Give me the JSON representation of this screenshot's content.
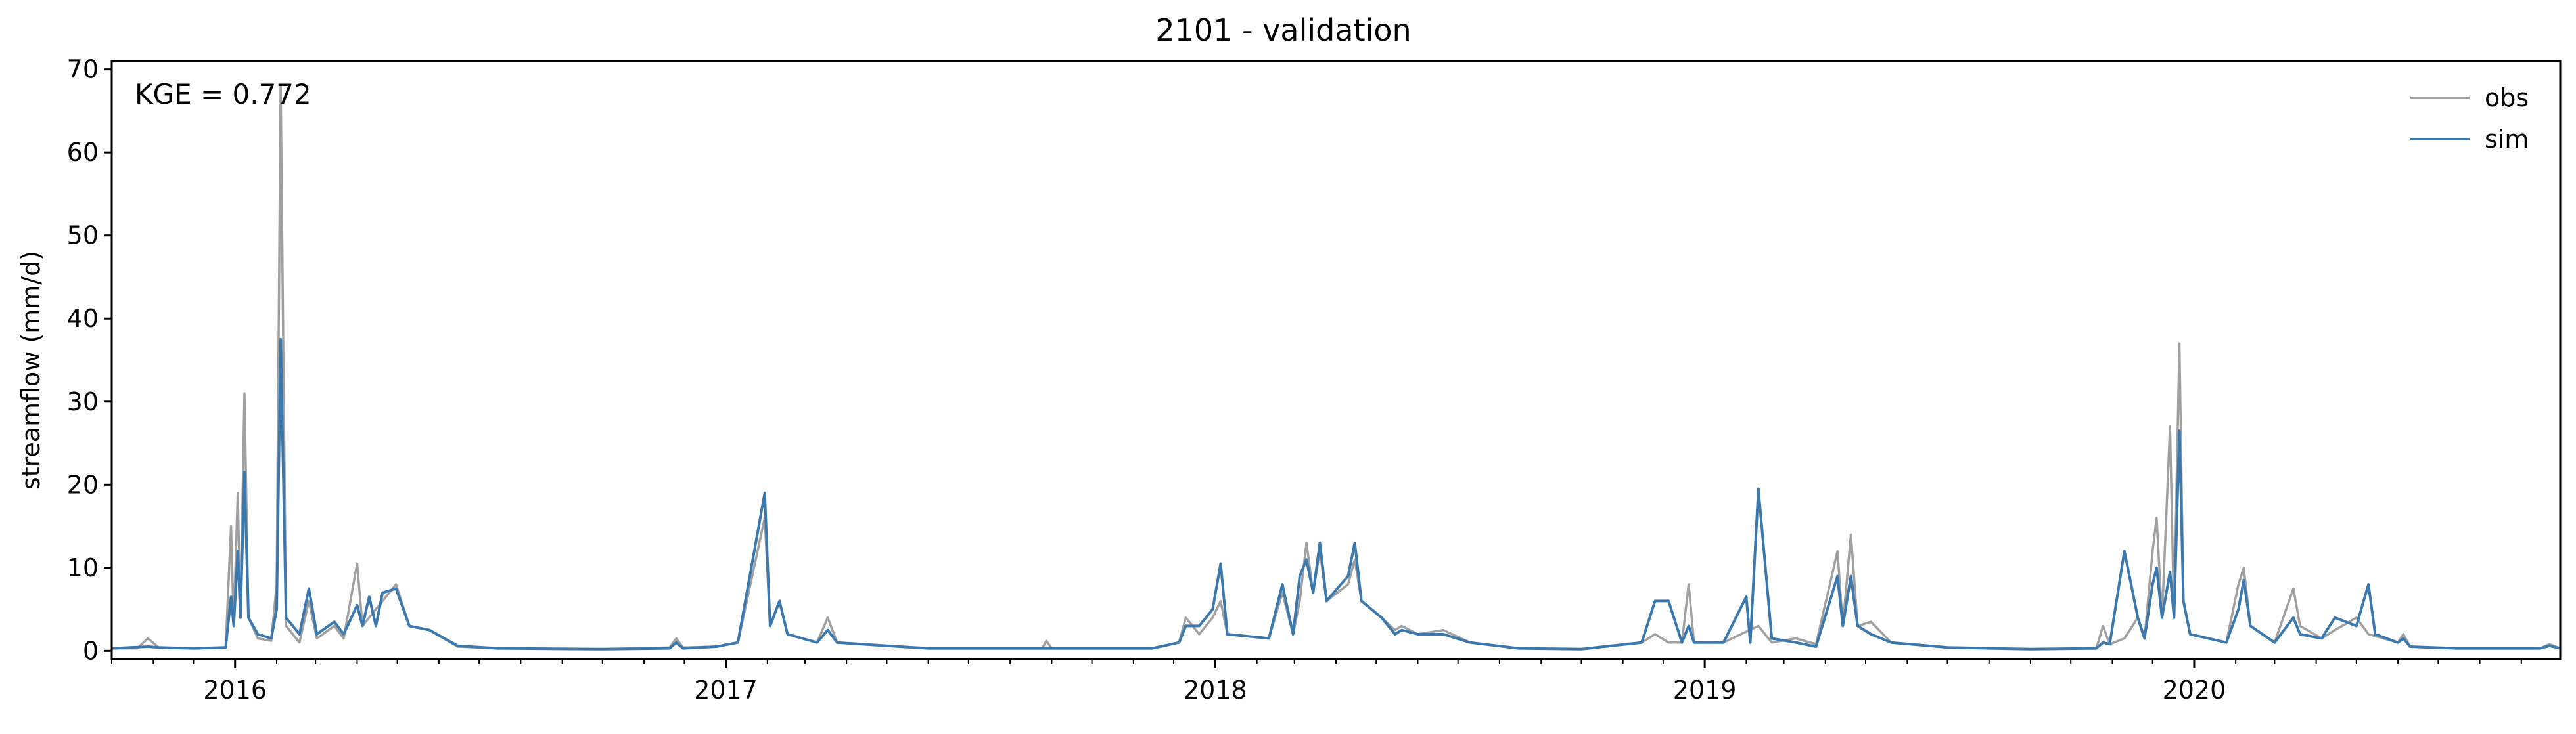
{
  "chart_data": {
    "type": "line",
    "title": "2101 - validation",
    "xlabel": "",
    "ylabel": "streamflow (mm/d)",
    "xlim": [
      "2015-10-01",
      "2020-09-30"
    ],
    "ylim": [
      -1,
      71
    ],
    "xticks": [
      "2016-01-01",
      "2017-01-01",
      "2018-01-01",
      "2019-01-01",
      "2020-01-01"
    ],
    "xtick_labels": [
      "2016",
      "2017",
      "2018",
      "2019",
      "2020"
    ],
    "yticks": [
      0,
      10,
      20,
      30,
      40,
      50,
      60,
      70
    ],
    "ytick_labels": [
      "0",
      "10",
      "20",
      "30",
      "40",
      "50",
      "60",
      "70"
    ],
    "annotation": "KGE = 0.772",
    "grid": false,
    "legend_position": "top-right",
    "series": [
      {
        "name": "obs",
        "color": "#a0a0a0",
        "points": [
          [
            "2015-10-01",
            0.3
          ],
          [
            "2015-10-20",
            0.3
          ],
          [
            "2015-10-28",
            1.5
          ],
          [
            "2015-11-05",
            0.4
          ],
          [
            "2015-12-01",
            0.3
          ],
          [
            "2015-12-25",
            0.4
          ],
          [
            "2015-12-29",
            15.0
          ],
          [
            "2015-12-31",
            3.0
          ],
          [
            "2016-01-03",
            19.0
          ],
          [
            "2016-01-05",
            4.0
          ],
          [
            "2016-01-08",
            31.0
          ],
          [
            "2016-01-11",
            4.0
          ],
          [
            "2016-01-18",
            1.5
          ],
          [
            "2016-01-28",
            1.2
          ],
          [
            "2016-02-01",
            8.0
          ],
          [
            "2016-02-04",
            68.0
          ],
          [
            "2016-02-08",
            3.0
          ],
          [
            "2016-02-18",
            1.0
          ],
          [
            "2016-02-25",
            6.0
          ],
          [
            "2016-03-02",
            1.5
          ],
          [
            "2016-03-15",
            3.0
          ],
          [
            "2016-03-22",
            1.5
          ],
          [
            "2016-04-01",
            10.5
          ],
          [
            "2016-04-05",
            3.0
          ],
          [
            "2016-04-20",
            6.0
          ],
          [
            "2016-04-30",
            8.0
          ],
          [
            "2016-05-10",
            3.0
          ],
          [
            "2016-05-25",
            2.5
          ],
          [
            "2016-06-15",
            0.5
          ],
          [
            "2016-07-15",
            0.3
          ],
          [
            "2016-10-01",
            0.2
          ],
          [
            "2016-11-20",
            0.4
          ],
          [
            "2016-11-25",
            1.5
          ],
          [
            "2016-11-30",
            0.4
          ],
          [
            "2016-12-25",
            0.5
          ],
          [
            "2017-01-10",
            1.0
          ],
          [
            "2017-01-30",
            16.0
          ],
          [
            "2017-02-03",
            3.0
          ],
          [
            "2017-02-10",
            6.0
          ],
          [
            "2017-02-16",
            2.0
          ],
          [
            "2017-03-10",
            1.0
          ],
          [
            "2017-03-18",
            4.0
          ],
          [
            "2017-03-25",
            1.0
          ],
          [
            "2017-05-01",
            0.6
          ],
          [
            "2017-06-01",
            0.3
          ],
          [
            "2017-08-25",
            0.3
          ],
          [
            "2017-08-28",
            1.2
          ],
          [
            "2017-09-01",
            0.3
          ],
          [
            "2017-11-15",
            0.3
          ],
          [
            "2017-12-05",
            1.0
          ],
          [
            "2017-12-10",
            4.0
          ],
          [
            "2017-12-20",
            2.0
          ],
          [
            "2017-12-30",
            4.0
          ],
          [
            "2018-01-05",
            6.0
          ],
          [
            "2018-01-10",
            2.0
          ],
          [
            "2018-02-10",
            1.5
          ],
          [
            "2018-02-20",
            7.0
          ],
          [
            "2018-02-28",
            2.0
          ],
          [
            "2018-03-05",
            6.0
          ],
          [
            "2018-03-10",
            13.0
          ],
          [
            "2018-03-15",
            7.0
          ],
          [
            "2018-03-20",
            12.0
          ],
          [
            "2018-03-25",
            6.0
          ],
          [
            "2018-04-10",
            8.0
          ],
          [
            "2018-04-15",
            11.0
          ],
          [
            "2018-04-20",
            6.0
          ],
          [
            "2018-05-05",
            4.0
          ],
          [
            "2018-05-15",
            2.5
          ],
          [
            "2018-05-20",
            3.0
          ],
          [
            "2018-06-01",
            2.0
          ],
          [
            "2018-06-20",
            2.5
          ],
          [
            "2018-07-10",
            1.0
          ],
          [
            "2018-08-15",
            0.3
          ],
          [
            "2018-10-01",
            0.2
          ],
          [
            "2018-11-15",
            1.0
          ],
          [
            "2018-11-25",
            2.0
          ],
          [
            "2018-12-05",
            1.0
          ],
          [
            "2018-12-15",
            1.0
          ],
          [
            "2018-12-20",
            8.0
          ],
          [
            "2018-12-24",
            1.0
          ],
          [
            "2019-01-15",
            1.0
          ],
          [
            "2019-02-10",
            3.0
          ],
          [
            "2019-02-20",
            1.0
          ],
          [
            "2019-03-10",
            1.5
          ],
          [
            "2019-03-25",
            0.8
          ],
          [
            "2019-04-10",
            12.0
          ],
          [
            "2019-04-14",
            3.0
          ],
          [
            "2019-04-20",
            14.0
          ],
          [
            "2019-04-25",
            3.0
          ],
          [
            "2019-05-05",
            3.5
          ],
          [
            "2019-05-20",
            1.0
          ],
          [
            "2019-07-01",
            0.4
          ],
          [
            "2019-09-01",
            0.2
          ],
          [
            "2019-10-20",
            0.3
          ],
          [
            "2019-10-25",
            3.0
          ],
          [
            "2019-10-30",
            0.8
          ],
          [
            "2019-11-10",
            1.5
          ],
          [
            "2019-11-20",
            4.0
          ],
          [
            "2019-11-25",
            1.5
          ],
          [
            "2019-12-01",
            12.0
          ],
          [
            "2019-12-04",
            16.0
          ],
          [
            "2019-12-08",
            4.0
          ],
          [
            "2019-12-14",
            27.0
          ],
          [
            "2019-12-17",
            4.0
          ],
          [
            "2019-12-21",
            37.0
          ],
          [
            "2019-12-24",
            6.0
          ],
          [
            "2019-12-29",
            2.0
          ],
          [
            "2020-01-25",
            1.0
          ],
          [
            "2020-02-03",
            8.0
          ],
          [
            "2020-02-07",
            10.0
          ],
          [
            "2020-02-12",
            3.0
          ],
          [
            "2020-03-01",
            1.0
          ],
          [
            "2020-03-15",
            7.5
          ],
          [
            "2020-03-20",
            3.0
          ],
          [
            "2020-04-05",
            1.5
          ],
          [
            "2020-04-15",
            2.5
          ],
          [
            "2020-05-01",
            4.0
          ],
          [
            "2020-05-10",
            2.0
          ],
          [
            "2020-06-01",
            1.0
          ],
          [
            "2020-06-05",
            2.0
          ],
          [
            "2020-06-10",
            0.5
          ],
          [
            "2020-07-15",
            0.3
          ],
          [
            "2020-09-15",
            0.3
          ],
          [
            "2020-09-22",
            0.8
          ],
          [
            "2020-09-30",
            0.3
          ]
        ]
      },
      {
        "name": "sim",
        "color": "#3a78ad",
        "points": [
          [
            "2015-10-01",
            0.3
          ],
          [
            "2015-10-28",
            0.5
          ],
          [
            "2015-11-05",
            0.4
          ],
          [
            "2015-12-01",
            0.3
          ],
          [
            "2015-12-25",
            0.4
          ],
          [
            "2015-12-29",
            6.5
          ],
          [
            "2015-12-31",
            3.0
          ],
          [
            "2016-01-03",
            12.0
          ],
          [
            "2016-01-05",
            4.0
          ],
          [
            "2016-01-08",
            21.5
          ],
          [
            "2016-01-11",
            4.0
          ],
          [
            "2016-01-18",
            2.0
          ],
          [
            "2016-01-28",
            1.5
          ],
          [
            "2016-02-01",
            5.0
          ],
          [
            "2016-02-04",
            37.5
          ],
          [
            "2016-02-08",
            4.0
          ],
          [
            "2016-02-18",
            2.0
          ],
          [
            "2016-02-25",
            7.5
          ],
          [
            "2016-03-02",
            2.0
          ],
          [
            "2016-03-15",
            3.5
          ],
          [
            "2016-03-22",
            2.0
          ],
          [
            "2016-04-01",
            5.5
          ],
          [
            "2016-04-05",
            3.0
          ],
          [
            "2016-04-10",
            6.5
          ],
          [
            "2016-04-15",
            3.0
          ],
          [
            "2016-04-20",
            7.0
          ],
          [
            "2016-04-30",
            7.5
          ],
          [
            "2016-05-10",
            3.0
          ],
          [
            "2016-05-25",
            2.5
          ],
          [
            "2016-06-15",
            0.6
          ],
          [
            "2016-07-15",
            0.3
          ],
          [
            "2016-10-01",
            0.2
          ],
          [
            "2016-11-20",
            0.3
          ],
          [
            "2016-11-25",
            1.0
          ],
          [
            "2016-11-30",
            0.3
          ],
          [
            "2016-12-25",
            0.5
          ],
          [
            "2017-01-10",
            1.0
          ],
          [
            "2017-01-30",
            19.0
          ],
          [
            "2017-02-03",
            3.0
          ],
          [
            "2017-02-10",
            6.0
          ],
          [
            "2017-02-16",
            2.0
          ],
          [
            "2017-03-10",
            1.0
          ],
          [
            "2017-03-18",
            2.5
          ],
          [
            "2017-03-25",
            1.0
          ],
          [
            "2017-05-01",
            0.6
          ],
          [
            "2017-06-01",
            0.3
          ],
          [
            "2017-11-15",
            0.3
          ],
          [
            "2017-12-05",
            1.0
          ],
          [
            "2017-12-10",
            3.0
          ],
          [
            "2017-12-20",
            3.0
          ],
          [
            "2017-12-30",
            5.0
          ],
          [
            "2018-01-05",
            10.5
          ],
          [
            "2018-01-10",
            2.0
          ],
          [
            "2018-02-10",
            1.5
          ],
          [
            "2018-02-20",
            8.0
          ],
          [
            "2018-02-28",
            2.0
          ],
          [
            "2018-03-05",
            9.0
          ],
          [
            "2018-03-10",
            11.0
          ],
          [
            "2018-03-15",
            7.0
          ],
          [
            "2018-03-20",
            13.0
          ],
          [
            "2018-03-25",
            6.0
          ],
          [
            "2018-04-10",
            9.0
          ],
          [
            "2018-04-15",
            13.0
          ],
          [
            "2018-04-20",
            6.0
          ],
          [
            "2018-05-05",
            4.0
          ],
          [
            "2018-05-15",
            2.0
          ],
          [
            "2018-05-20",
            2.5
          ],
          [
            "2018-06-01",
            2.0
          ],
          [
            "2018-06-20",
            2.0
          ],
          [
            "2018-07-10",
            1.0
          ],
          [
            "2018-08-15",
            0.3
          ],
          [
            "2018-10-01",
            0.2
          ],
          [
            "2018-11-15",
            1.0
          ],
          [
            "2018-11-25",
            6.0
          ],
          [
            "2018-12-05",
            6.0
          ],
          [
            "2018-12-15",
            1.0
          ],
          [
            "2018-12-20",
            3.0
          ],
          [
            "2018-12-24",
            1.0
          ],
          [
            "2019-01-15",
            1.0
          ],
          [
            "2019-02-01",
            6.5
          ],
          [
            "2019-02-04",
            1.0
          ],
          [
            "2019-02-10",
            19.5
          ],
          [
            "2019-02-20",
            1.5
          ],
          [
            "2019-03-10",
            1.0
          ],
          [
            "2019-03-25",
            0.5
          ],
          [
            "2019-04-10",
            9.0
          ],
          [
            "2019-04-14",
            3.0
          ],
          [
            "2019-04-20",
            9.0
          ],
          [
            "2019-04-25",
            3.0
          ],
          [
            "2019-05-05",
            2.0
          ],
          [
            "2019-05-20",
            1.0
          ],
          [
            "2019-07-01",
            0.4
          ],
          [
            "2019-09-01",
            0.2
          ],
          [
            "2019-10-20",
            0.3
          ],
          [
            "2019-10-25",
            1.0
          ],
          [
            "2019-10-30",
            0.8
          ],
          [
            "2019-11-10",
            12.0
          ],
          [
            "2019-11-20",
            4.0
          ],
          [
            "2019-11-25",
            1.5
          ],
          [
            "2019-12-01",
            8.0
          ],
          [
            "2019-12-04",
            10.0
          ],
          [
            "2019-12-08",
            4.0
          ],
          [
            "2019-12-14",
            9.5
          ],
          [
            "2019-12-17",
            4.0
          ],
          [
            "2019-12-21",
            26.5
          ],
          [
            "2019-12-24",
            6.0
          ],
          [
            "2019-12-29",
            2.0
          ],
          [
            "2020-01-25",
            1.0
          ],
          [
            "2020-02-03",
            5.0
          ],
          [
            "2020-02-07",
            8.5
          ],
          [
            "2020-02-12",
            3.0
          ],
          [
            "2020-03-01",
            1.0
          ],
          [
            "2020-03-15",
            4.0
          ],
          [
            "2020-03-20",
            2.0
          ],
          [
            "2020-04-05",
            1.5
          ],
          [
            "2020-04-15",
            4.0
          ],
          [
            "2020-05-01",
            3.0
          ],
          [
            "2020-05-10",
            8.0
          ],
          [
            "2020-05-15",
            2.0
          ],
          [
            "2020-06-01",
            1.0
          ],
          [
            "2020-06-05",
            1.5
          ],
          [
            "2020-06-10",
            0.5
          ],
          [
            "2020-07-15",
            0.3
          ],
          [
            "2020-09-15",
            0.3
          ],
          [
            "2020-09-22",
            0.6
          ],
          [
            "2020-09-30",
            0.3
          ]
        ]
      }
    ]
  }
}
